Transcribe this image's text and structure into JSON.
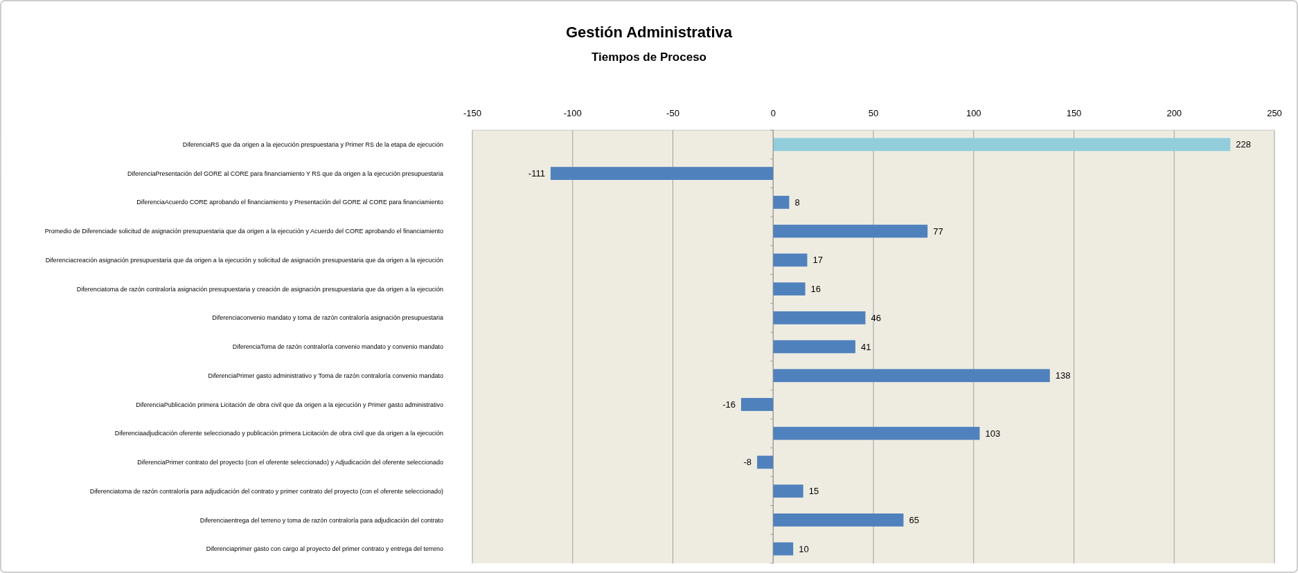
{
  "chart_data": {
    "type": "bar",
    "orientation": "horizontal",
    "title": "Gestión Administrativa",
    "subtitle": "Tiempos de Proceso",
    "categories": [
      "DiferenciaRS que da origen a la ejecución prespuestaria y Primer RS de la etapa de ejecución",
      "DiferenciaPresentación del GORE al CORE para financiamiento Y RS que da origen a la ejecución presupuestaria",
      "DiferenciaAcuerdo CORE aprobando el financiamiento y Presentación del GORE al CORE para financiamiento",
      "Promedio de Diferenciade solicitud de asignación presupuestaria que da origen a la ejecución y Acuerdo del CORE aprobando el financiamiento",
      "Diferenciacreación asignación presupuestaria que da origen a la ejecución y solicitud de asignación presupuestaria que da origen a la ejecución",
      "Diferenciatoma de razón contraloría asignación presupuestaria y creación de asignación presupuestaria que da origen a la ejecución",
      "Diferenciaconvenio mandato y toma de razón contraloría asignación presupuestaria",
      "DiferenciaToma de razón contraloría convenio mandato y convenio mandato",
      "DiferenciaPrimer gasto administrativo y Toma de razón contraloría convenio mandato",
      "DiferenciaPublicación primera Licitación de obra civil que da origen a la ejecución y Primer gasto administrativo",
      "Diferenciaadjudicación oferente seleccionado y publicación primera Licitación de obra civil que da origen a la ejecución",
      "DiferenciaPrimer contrato del proyecto (con el oferente seleccionado) y Adjudicación del oferente seleccionado",
      "Diferenciatoma de razón contraloría para adjudicación del contrato y primer contrato del proyecto (con el oferente seleccionado)",
      "Diferenciaentrega del terreno y toma de razón contraloría para adjudicación del contrato",
      "Diferenciaprimer gasto con cargo al proyecto del primer contrato y entrega del terreno"
    ],
    "values": [
      228,
      -111,
      8,
      77,
      17,
      16,
      46,
      41,
      138,
      -16,
      103,
      -8,
      15,
      65,
      10
    ],
    "colors": [
      "#92cddc",
      "#4f81bd",
      "#4f81bd",
      "#4f81bd",
      "#4f81bd",
      "#4f81bd",
      "#4f81bd",
      "#4f81bd",
      "#4f81bd",
      "#4f81bd",
      "#4f81bd",
      "#4f81bd",
      "#4f81bd",
      "#4f81bd",
      "#4f81bd"
    ],
    "xlim": [
      -150,
      250
    ],
    "xticks": [
      -150,
      -100,
      -50,
      0,
      50,
      100,
      150,
      200,
      250
    ],
    "grid": "x",
    "data_labels": true
  }
}
